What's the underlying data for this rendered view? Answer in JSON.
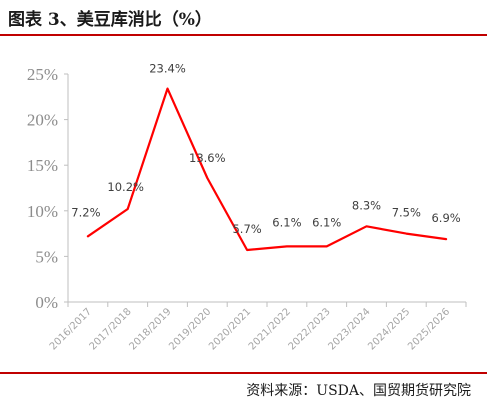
{
  "title": "图表 3、美豆库消比（%）",
  "source": "资料来源：USDA、国贸期货研究院",
  "chart_data": {
    "type": "line",
    "categories": [
      "2016/2017",
      "2017/2018",
      "2018/2019",
      "2019/2020",
      "2020/2021",
      "2021/2022",
      "2022/2023",
      "2023/2024",
      "2024/2025",
      "2025/2026"
    ],
    "series": [
      {
        "values": [
          7.2,
          10.2,
          23.4,
          13.6,
          5.7,
          6.1,
          6.1,
          8.3,
          7.5,
          6.9
        ]
      }
    ],
    "data_labels": [
      "7.2%",
      "10.2%",
      "23.4%",
      "13.6%",
      "5.7%",
      "6.1%",
      "6.1%",
      "8.3%",
      "7.5%",
      "6.9%"
    ],
    "y_ticks": [
      "0%",
      "5%",
      "10%",
      "15%",
      "20%",
      "25%"
    ],
    "ylim": [
      0,
      25
    ],
    "grid": false,
    "colors": {
      "line": "#ff0000",
      "rule": "#c00000"
    }
  }
}
